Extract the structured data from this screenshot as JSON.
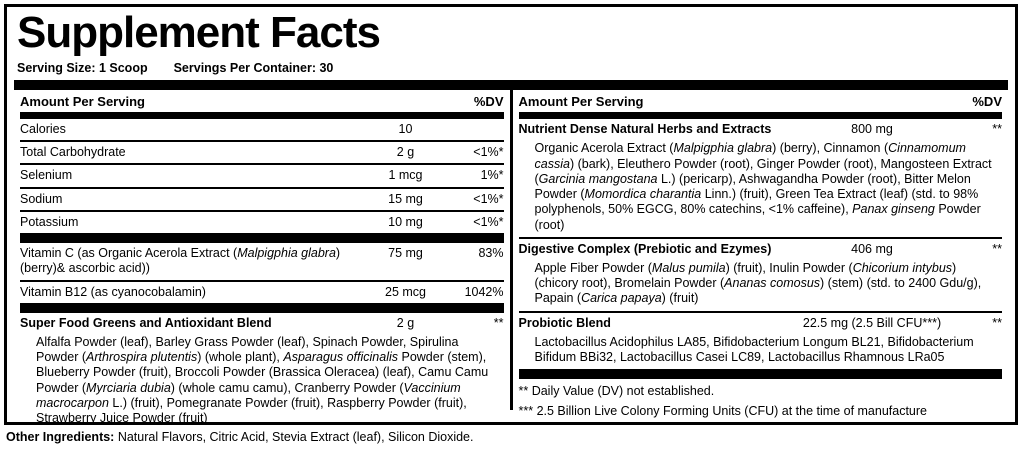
{
  "colors": {
    "ink": "#000000",
    "paper": "#ffffff"
  },
  "title": "Supplement Facts",
  "serving": {
    "size": "Serving Size: 1 Scoop",
    "per_container": "Servings Per Container: 30"
  },
  "left": {
    "header": {
      "amount_label": "Amount Per Serving",
      "dv_label": "%DV"
    },
    "rows": [
      {
        "name": "Calories",
        "amount": "10",
        "dv": ""
      },
      {
        "name": "Total Carbohydrate",
        "amount": "2 g",
        "dv": "<1%*"
      },
      {
        "name": "Selenium",
        "amount": "1 mcg",
        "dv": "1%*"
      },
      {
        "name": "Sodium",
        "amount": "15 mg",
        "dv": "<1%*"
      },
      {
        "name": "Potassium",
        "amount": "10 mg",
        "dv": "<1%*"
      }
    ],
    "vitamin_c": {
      "name_rich": [
        {
          "t": "Vitamin C (as Organic Acerola Extract ("
        },
        {
          "t": "Malpigphia glabra",
          "i": true
        },
        {
          "t": ") (berry)& ascorbic acid))"
        }
      ],
      "amount": "75 mg",
      "dv": "83%"
    },
    "vitamin_b12": {
      "name": "Vitamin B12 (as cyanocobalamin)",
      "amount": "25 mcg",
      "dv": "1042%"
    },
    "blend": {
      "name": "Super Food Greens and Antioxidant Blend",
      "amount": "2 g",
      "dv": "**",
      "ingredients": [
        {
          "t": "Alfalfa Powder (leaf), Barley Grass Powder (leaf), Spinach Powder, Spirulina Powder ("
        },
        {
          "t": "Arthrospira plutentis",
          "i": true
        },
        {
          "t": ") (whole plant), "
        },
        {
          "t": "Asparagus officinalis",
          "i": true
        },
        {
          "t": " Powder (stem), Blueberry Powder (fruit), Broccoli Powder (Brassica Oleracea) (leaf), Camu Camu Powder ("
        },
        {
          "t": "Myrciaria dubia",
          "i": true
        },
        {
          "t": ") (whole camu camu), Cranberry Powder ("
        },
        {
          "t": "Vaccinium macrocarpon",
          "i": true
        },
        {
          "t": " L.) (fruit), Pomegranate Powder (fruit), Raspberry Powder (fruit), Strawberry Juice Powder (fruit)"
        }
      ]
    }
  },
  "right": {
    "header": {
      "amount_label": "Amount Per Serving",
      "dv_label": "%DV"
    },
    "sections": [
      {
        "name": "Nutrient Dense Natural Herbs and Extracts",
        "amount": "800 mg",
        "dv": "**",
        "ingredients": [
          {
            "t": "Organic Acerola Extract ("
          },
          {
            "t": "Malpigphia glabra",
            "i": true
          },
          {
            "t": ") (berry), Cinnamon ("
          },
          {
            "t": "Cinnamomum cassia",
            "i": true
          },
          {
            "t": ") (bark), Eleuthero Powder (root), Ginger Powder (root), Mangosteen Extract ("
          },
          {
            "t": "Garcinia mangostana",
            "i": true
          },
          {
            "t": " L.) (pericarp), Ashwagandha Powder (root), Bitter Melon Powder ("
          },
          {
            "t": "Momordica charantia",
            "i": true
          },
          {
            "t": " Linn.) (fruit), Green Tea Extract (leaf) (std. to 98% polyphenols, 50% EGCG, 80% catechins, <1% caffeine), "
          },
          {
            "t": "Panax ginseng",
            "i": true
          },
          {
            "t": " Powder (root)"
          }
        ]
      },
      {
        "name": "Digestive Complex (Prebiotic and Ezymes)",
        "amount": "406 mg",
        "dv": "**",
        "ingredients": [
          {
            "t": "Apple Fiber Powder ("
          },
          {
            "t": "Malus pumila",
            "i": true
          },
          {
            "t": ") (fruit), Inulin Powder ("
          },
          {
            "t": "Chicorium intybus",
            "i": true
          },
          {
            "t": ") (chicory root), Bromelain Powder ("
          },
          {
            "t": "Ananas comosus",
            "i": true
          },
          {
            "t": ") (stem) (std. to 2400 Gdu/g), Papain ("
          },
          {
            "t": "Carica papaya",
            "i": true
          },
          {
            "t": ") (fruit)"
          }
        ]
      },
      {
        "name": "Probiotic Blend",
        "amount": "22.5 mg (2.5 Bill CFU***)",
        "dv": "**",
        "ingredients": [
          {
            "t": "Lactobacillus Acidophilus LA85, Bifidobacterium Longum BL21, Bifidobacterium Bifidum BBi32, Lactobacillus Casei LC89, Lactobacillus Rhamnous LRa05"
          }
        ]
      }
    ],
    "footnotes": [
      "** Daily Value (DV) not established.",
      "*** 2.5 Billion Live Colony Forming Units (CFU) at the time of manufacture"
    ]
  },
  "other_ingredients": {
    "label": "Other Ingredients:",
    "text": " Natural Flavors, Citric Acid, Stevia Extract (leaf), Silicon Dioxide."
  }
}
